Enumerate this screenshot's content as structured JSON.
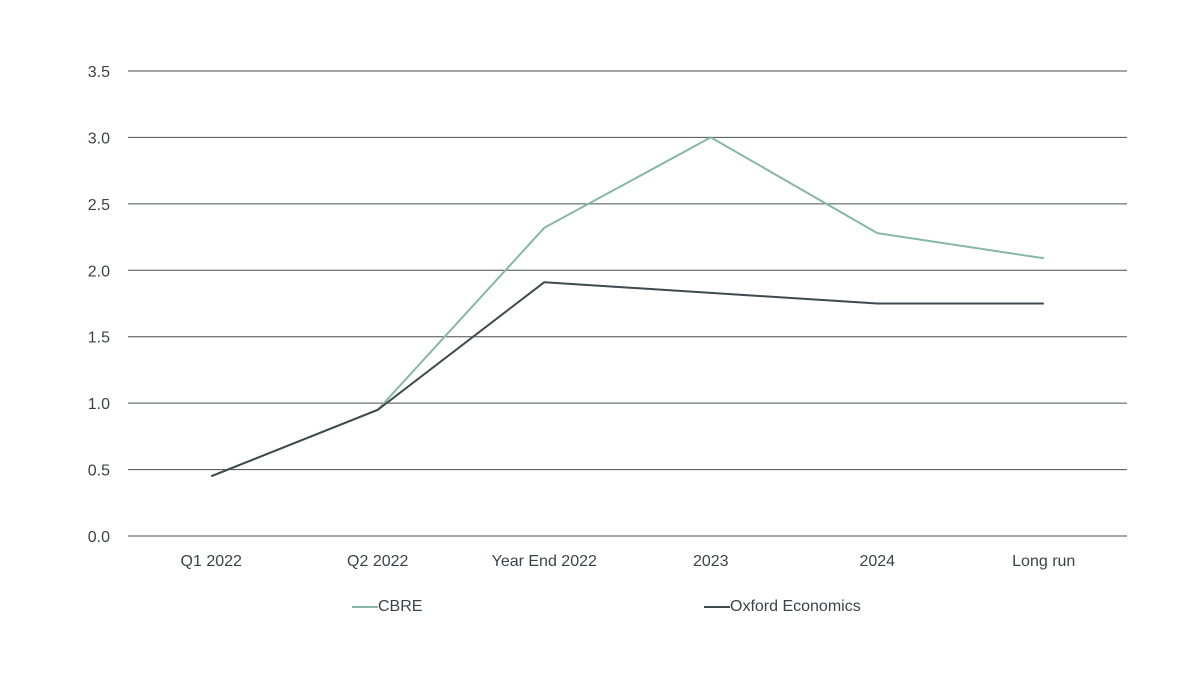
{
  "chart_data": {
    "type": "line",
    "title": "",
    "xlabel": "",
    "ylabel": "",
    "categories": [
      "Q1 2022",
      "Q2 2022",
      "Year End 2022",
      "2023",
      "2024",
      "Long run"
    ],
    "ylim": [
      0,
      3.5
    ],
    "yticks": [
      "0.0",
      "0.5",
      "1.0",
      "1.5",
      "2.0",
      "2.5",
      "3.0",
      "3.5"
    ],
    "grid": true,
    "legend_position": "bottom",
    "series": [
      {
        "name": "CBRE",
        "color": "#86b8a5",
        "values": [
          0.45,
          0.95,
          2.32,
          3.0,
          2.28,
          2.09
        ]
      },
      {
        "name": "Oxford Economics",
        "color": "#3d4a4e",
        "values": [
          0.45,
          0.95,
          1.91,
          1.83,
          1.75,
          1.75
        ]
      }
    ]
  }
}
